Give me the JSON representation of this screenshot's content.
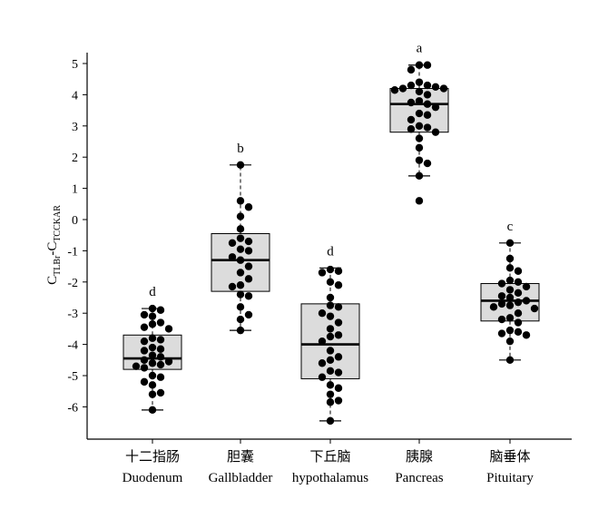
{
  "chart_data": {
    "type": "box",
    "ylabel": {
      "main": "C",
      "sub1": "TLBr",
      "dash": "-C",
      "sub2": "TCCKAR"
    },
    "ylim": [
      -6.85,
      5.6
    ],
    "yticks": [
      5,
      4,
      3,
      2,
      1,
      0,
      -1,
      -2,
      -3,
      -4,
      -5,
      -6
    ],
    "categories": [
      {
        "cn": "十二指肠",
        "en": "Duodenum"
      },
      {
        "cn": "胆囊",
        "en": "Gallbladder"
      },
      {
        "cn": "下丘脑",
        "en": "hypothalamus"
      },
      {
        "cn": "胰腺",
        "en": "Pancreas"
      },
      {
        "cn": "脑垂体",
        "en": "Pituitary"
      }
    ],
    "groups": [
      {
        "letter": "d",
        "box": {
          "q1": -4.8,
          "median": -4.45,
          "q3": -3.7,
          "whisker_low": -6.1,
          "whisker_high": -2.85
        },
        "points": [
          -2.85,
          -2.9,
          -3.05,
          -3.1,
          -3.3,
          -3.35,
          -3.45,
          -3.5,
          -3.8,
          -3.85,
          -3.9,
          -4.1,
          -4.15,
          -4.2,
          -4.35,
          -4.4,
          -4.5,
          -4.55,
          -4.6,
          -4.65,
          -4.7,
          -4.75,
          -5.0,
          -5.05,
          -5.2,
          -5.3,
          -5.55,
          -5.6,
          -6.1
        ]
      },
      {
        "letter": "b",
        "box": {
          "q1": -2.3,
          "median": -1.3,
          "q3": -0.45,
          "whisker_low": -3.55,
          "whisker_high": 1.75
        },
        "points": [
          1.75,
          0.6,
          0.4,
          0.1,
          -0.3,
          -0.6,
          -0.7,
          -0.75,
          -0.95,
          -1.0,
          -1.2,
          -1.3,
          -1.5,
          -1.7,
          -1.9,
          -2.1,
          -2.15,
          -2.4,
          -2.45,
          -2.8,
          -3.05,
          -3.2,
          -3.55
        ]
      },
      {
        "letter": "d",
        "box": {
          "q1": -5.1,
          "median": -4.0,
          "q3": -2.7,
          "whisker_low": -6.45,
          "whisker_high": -1.55
        },
        "points": [
          -1.6,
          -1.65,
          -1.7,
          -2.0,
          -2.1,
          -2.5,
          -2.75,
          -2.8,
          -3.0,
          -3.1,
          -3.3,
          -3.5,
          -3.7,
          -3.75,
          -3.9,
          -4.2,
          -4.4,
          -4.5,
          -4.6,
          -4.85,
          -4.9,
          -5.05,
          -5.3,
          -5.4,
          -5.6,
          -5.8,
          -5.85,
          -6.45
        ]
      },
      {
        "letter": "a",
        "box": {
          "q1": 2.8,
          "median": 3.7,
          "q3": 4.2,
          "whisker_low": 1.4,
          "whisker_high": 4.95
        },
        "points": [
          4.95,
          4.95,
          4.8,
          4.4,
          4.3,
          4.3,
          4.25,
          4.2,
          4.2,
          4.15,
          4.1,
          4.0,
          3.8,
          3.75,
          3.7,
          3.6,
          3.4,
          3.35,
          3.2,
          3.0,
          2.95,
          2.9,
          2.8,
          2.6,
          2.3,
          1.9,
          1.8,
          1.4,
          0.6
        ]
      },
      {
        "letter": "c",
        "box": {
          "q1": -3.25,
          "median": -2.6,
          "q3": -2.05,
          "whisker_low": -4.5,
          "whisker_high": -0.75
        },
        "points": [
          -0.75,
          -1.25,
          -1.55,
          -1.65,
          -1.95,
          -2.0,
          -2.05,
          -2.15,
          -2.25,
          -2.35,
          -2.45,
          -2.5,
          -2.6,
          -2.65,
          -2.7,
          -2.75,
          -2.8,
          -2.85,
          -3.0,
          -3.15,
          -3.2,
          -3.3,
          -3.55,
          -3.6,
          -3.65,
          -3.7,
          -3.9,
          -4.5
        ]
      }
    ],
    "colors": {
      "box_fill": "#dcdcdc",
      "point": "#000000",
      "axis": "#000000"
    },
    "grid": false,
    "legend": "none"
  }
}
